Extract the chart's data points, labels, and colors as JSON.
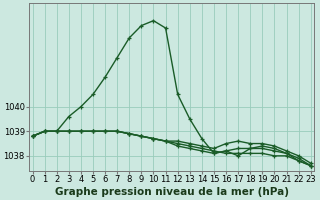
{
  "title": "Graphe pression niveau de la mer (hPa)",
  "background_color": "#cce8e0",
  "grid_color": "#99ccbb",
  "line_color": "#1a5c28",
  "hours": [
    0,
    1,
    2,
    3,
    4,
    5,
    6,
    7,
    8,
    9,
    10,
    11,
    12,
    13,
    14,
    15,
    16,
    17,
    18,
    19,
    20,
    21,
    22,
    23
  ],
  "series": [
    [
      1038.8,
      1039.0,
      1039.0,
      1039.6,
      1040.0,
      1040.5,
      1041.2,
      1042.0,
      1042.8,
      1043.3,
      1043.5,
      1043.2,
      1040.5,
      1039.5,
      1038.7,
      1038.1,
      1038.2,
      1038.0,
      1038.3,
      1038.4,
      1038.3,
      1038.1,
      1037.8,
      1037.6
    ],
    [
      1038.8,
      1039.0,
      1039.0,
      1039.0,
      1039.0,
      1039.0,
      1039.0,
      1039.0,
      1038.9,
      1038.8,
      1038.7,
      1038.6,
      1038.5,
      1038.4,
      1038.3,
      1038.2,
      1038.1,
      1038.1,
      1038.1,
      1038.1,
      1038.0,
      1038.0,
      1037.8,
      1037.6
    ],
    [
      1038.8,
      1039.0,
      1039.0,
      1039.0,
      1039.0,
      1039.0,
      1039.0,
      1039.0,
      1038.9,
      1038.8,
      1038.7,
      1038.6,
      1038.4,
      1038.3,
      1038.2,
      1038.1,
      1038.2,
      1038.3,
      1038.3,
      1038.3,
      1038.2,
      1038.1,
      1037.9,
      1037.6
    ],
    [
      1038.8,
      1039.0,
      1039.0,
      1039.0,
      1039.0,
      1039.0,
      1039.0,
      1039.0,
      1038.9,
      1038.8,
      1038.7,
      1038.6,
      1038.6,
      1038.5,
      1038.4,
      1038.3,
      1038.5,
      1038.6,
      1038.5,
      1038.5,
      1038.4,
      1038.2,
      1038.0,
      1037.7
    ]
  ],
  "ylim": [
    1037.4,
    1044.2
  ],
  "yticks": [
    1038,
    1039,
    1040
  ],
  "xlim": [
    -0.3,
    23.3
  ],
  "xticks": [
    0,
    1,
    2,
    3,
    4,
    5,
    6,
    7,
    8,
    9,
    10,
    11,
    12,
    13,
    14,
    15,
    16,
    17,
    18,
    19,
    20,
    21,
    22,
    23
  ],
  "marker": "+",
  "markersize": 3.5,
  "linewidth": 1.0,
  "title_fontsize": 7.5,
  "tick_fontsize": 6,
  "xlabel_fontweight": "bold"
}
